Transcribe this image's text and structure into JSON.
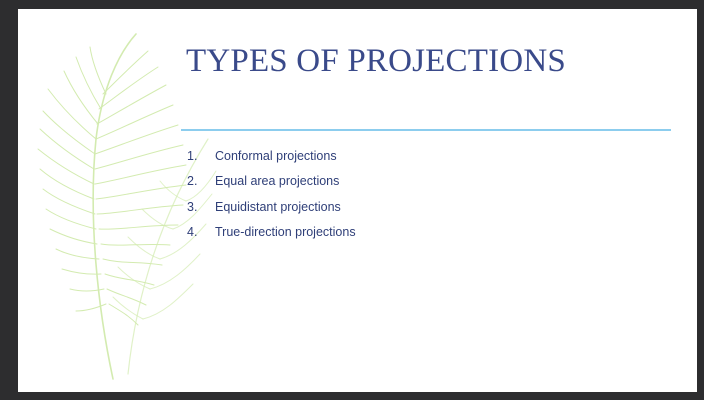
{
  "slide": {
    "title": "TYPES OF PROJECTIONS",
    "items": [
      {
        "number": "1.",
        "label": "Conformal projections"
      },
      {
        "number": "2.",
        "label": "Equal area projections"
      },
      {
        "number": "3.",
        "label": "Equidistant projections"
      },
      {
        "number": "4.",
        "label": "True-direction projections"
      }
    ]
  },
  "decoration": {
    "icon": "feather-icon"
  },
  "colors": {
    "title": "#3a4a8a",
    "text": "#2f3f78",
    "rule": "#8ccdee",
    "feather": "#cfe9a8",
    "frame": "#2d2d2f",
    "slide_bg": "#ffffff"
  }
}
